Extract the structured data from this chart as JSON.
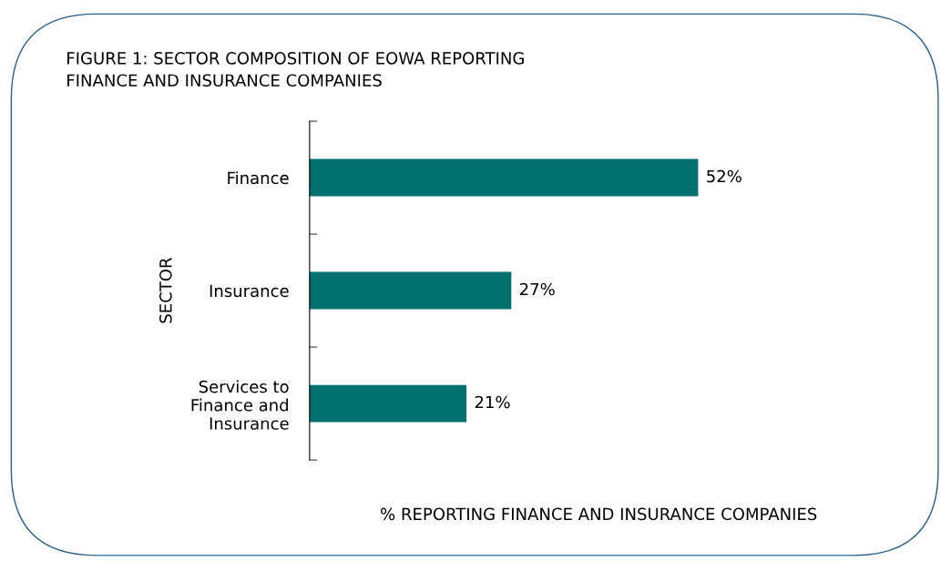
{
  "chart_data": {
    "type": "bar",
    "orientation": "horizontal",
    "title": "FIGURE 1: SECTOR COMPOSITION OF EOWA REPORTING\nFINANCE AND INSURANCE COMPANIES",
    "xlabel": "% REPORTING FINANCE AND INSURANCE COMPANIES",
    "ylabel": "SECTOR",
    "categories": [
      "Finance",
      "Insurance",
      "Services to\nFinance and\nInsurance"
    ],
    "values": [
      52,
      27,
      21
    ],
    "color": "#00716f",
    "value_labels": [
      "52%",
      "27%",
      "21%"
    ],
    "grid": false,
    "legend": false,
    "tick_labels": "y"
  }
}
